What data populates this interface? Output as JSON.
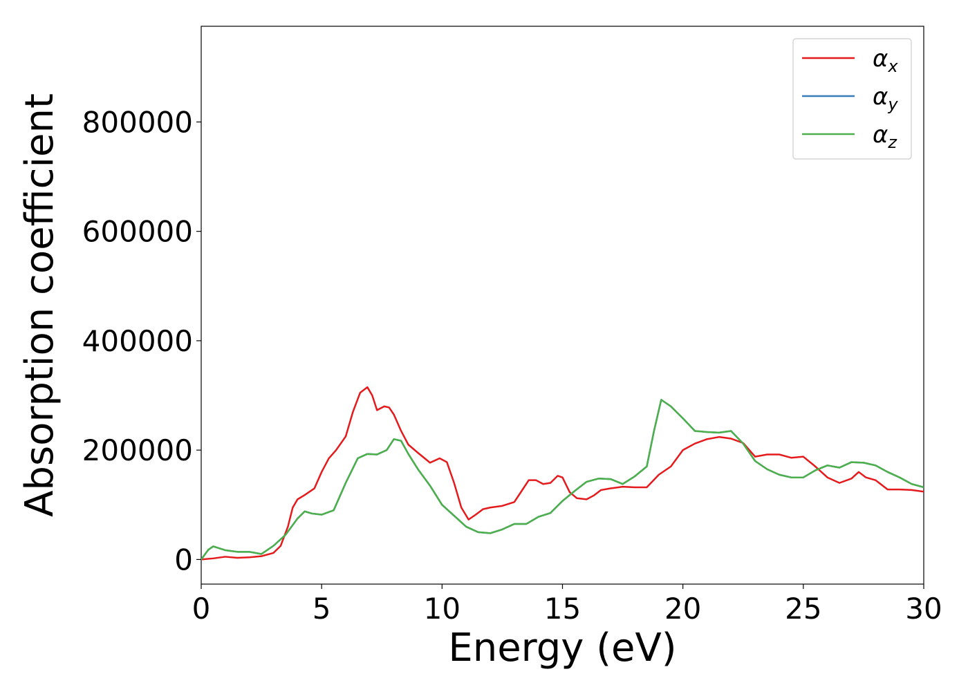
{
  "chart_data": {
    "type": "line",
    "title": "",
    "xlabel": "Energy (eV)",
    "ylabel": "Absorption coefficient",
    "xlim": [
      0,
      30
    ],
    "ylim": [
      -45000,
      975000
    ],
    "xticks": [
      0,
      5,
      10,
      15,
      20,
      25,
      30
    ],
    "yticks": [
      0,
      200000,
      400000,
      600000,
      800000
    ],
    "grid": false,
    "legend": {
      "position": "top-right",
      "entries": [
        {
          "symbol": "α",
          "sub": "x",
          "color": "#e41a1c"
        },
        {
          "symbol": "α",
          "sub": "y",
          "color": "#377eb8"
        },
        {
          "symbol": "α",
          "sub": "z",
          "color": "#4daf4a"
        }
      ]
    },
    "series": [
      {
        "name": "αx",
        "color": "#e41a1c",
        "x": [
          0,
          0.5,
          1.0,
          1.5,
          2.0,
          2.5,
          3.0,
          3.3,
          3.6,
          3.8,
          4.0,
          4.3,
          4.7,
          5.0,
          5.3,
          5.6,
          6.0,
          6.3,
          6.6,
          6.9,
          7.1,
          7.3,
          7.6,
          7.8,
          8.0,
          8.3,
          8.6,
          9.0,
          9.5,
          9.9,
          10.2,
          10.5,
          10.8,
          11.1,
          11.4,
          11.7,
          12.0,
          12.5,
          13.0,
          13.3,
          13.6,
          13.9,
          14.2,
          14.5,
          14.8,
          15.0,
          15.3,
          15.6,
          16.0,
          16.3,
          16.6,
          17.0,
          17.5,
          18.0,
          18.5,
          19.0,
          19.5,
          20.0,
          20.5,
          21.0,
          21.5,
          22.0,
          22.5,
          23.0,
          23.5,
          24.0,
          24.5,
          25.0,
          25.5,
          26.0,
          26.5,
          27.0,
          27.3,
          27.6,
          28.0,
          28.5,
          29.0,
          29.5,
          30.0
        ],
        "y": [
          0,
          2000,
          5000,
          3000,
          4000,
          6000,
          12000,
          25000,
          60000,
          95000,
          110000,
          118000,
          130000,
          160000,
          185000,
          200000,
          225000,
          270000,
          305000,
          315000,
          300000,
          273000,
          280000,
          278000,
          265000,
          235000,
          210000,
          195000,
          177000,
          185000,
          178000,
          140000,
          95000,
          73000,
          82000,
          92000,
          95000,
          98000,
          105000,
          125000,
          145000,
          145000,
          138000,
          140000,
          153000,
          150000,
          123000,
          112000,
          110000,
          117000,
          127000,
          130000,
          133000,
          132000,
          132000,
          155000,
          170000,
          200000,
          212000,
          220000,
          224000,
          221000,
          213000,
          188000,
          192000,
          192000,
          186000,
          188000,
          170000,
          150000,
          140000,
          148000,
          160000,
          150000,
          145000,
          128000,
          128000,
          127000,
          124000
        ]
      },
      {
        "name": "αy",
        "color": "#377eb8",
        "x": [
          0,
          0.3,
          0.5,
          1.0,
          1.5,
          2.0,
          2.5,
          3.0,
          3.5,
          4.0,
          4.3,
          4.6,
          5.0,
          5.5,
          6.0,
          6.5,
          6.9,
          7.3,
          7.7,
          8.0,
          8.3,
          8.6,
          9.0,
          9.5,
          10.0,
          10.5,
          11.0,
          11.5,
          12.0,
          12.5,
          13.0,
          13.5,
          14.0,
          14.5,
          15.0,
          15.5,
          16.0,
          16.5,
          17.0,
          17.5,
          18.0,
          18.5,
          18.8,
          19.1,
          19.5,
          20.0,
          20.5,
          21.0,
          21.5,
          22.0,
          22.5,
          23.0,
          23.5,
          24.0,
          24.5,
          25.0,
          25.5,
          26.0,
          26.5,
          27.0,
          27.5,
          28.0,
          28.5,
          29.0,
          29.5,
          30.0
        ],
        "y": [
          0,
          18000,
          24000,
          17000,
          14000,
          14000,
          10000,
          25000,
          45000,
          75000,
          88000,
          84000,
          82000,
          90000,
          140000,
          185000,
          193000,
          192000,
          200000,
          220000,
          217000,
          193000,
          165000,
          135000,
          100000,
          80000,
          60000,
          50000,
          48000,
          55000,
          65000,
          65000,
          78000,
          85000,
          107000,
          125000,
          142000,
          148000,
          147000,
          138000,
          152000,
          170000,
          235000,
          292000,
          280000,
          258000,
          235000,
          233000,
          232000,
          235000,
          212000,
          180000,
          165000,
          155000,
          150000,
          150000,
          163000,
          172000,
          168000,
          178000,
          177000,
          172000,
          160000,
          150000,
          138000,
          132000
        ]
      },
      {
        "name": "αz",
        "color": "#4daf4a",
        "x": [
          0,
          0.3,
          0.5,
          1.0,
          1.5,
          2.0,
          2.5,
          3.0,
          3.5,
          4.0,
          4.3,
          4.6,
          5.0,
          5.5,
          6.0,
          6.5,
          6.9,
          7.3,
          7.7,
          8.0,
          8.3,
          8.6,
          9.0,
          9.5,
          10.0,
          10.5,
          11.0,
          11.5,
          12.0,
          12.5,
          13.0,
          13.5,
          14.0,
          14.5,
          15.0,
          15.5,
          16.0,
          16.5,
          17.0,
          17.5,
          18.0,
          18.5,
          18.8,
          19.1,
          19.5,
          20.0,
          20.5,
          21.0,
          21.5,
          22.0,
          22.5,
          23.0,
          23.5,
          24.0,
          24.5,
          25.0,
          25.5,
          26.0,
          26.5,
          27.0,
          27.5,
          28.0,
          28.5,
          29.0,
          29.5,
          30.0
        ],
        "y": [
          0,
          18000,
          24000,
          17000,
          14000,
          14000,
          10000,
          25000,
          45000,
          75000,
          88000,
          84000,
          82000,
          90000,
          140000,
          185000,
          193000,
          192000,
          200000,
          220000,
          217000,
          193000,
          165000,
          135000,
          100000,
          80000,
          60000,
          50000,
          48000,
          55000,
          65000,
          65000,
          78000,
          85000,
          107000,
          125000,
          142000,
          148000,
          147000,
          138000,
          152000,
          170000,
          235000,
          292000,
          280000,
          258000,
          235000,
          233000,
          232000,
          235000,
          212000,
          180000,
          165000,
          155000,
          150000,
          150000,
          163000,
          172000,
          168000,
          178000,
          177000,
          172000,
          160000,
          150000,
          138000,
          132000
        ]
      }
    ]
  }
}
